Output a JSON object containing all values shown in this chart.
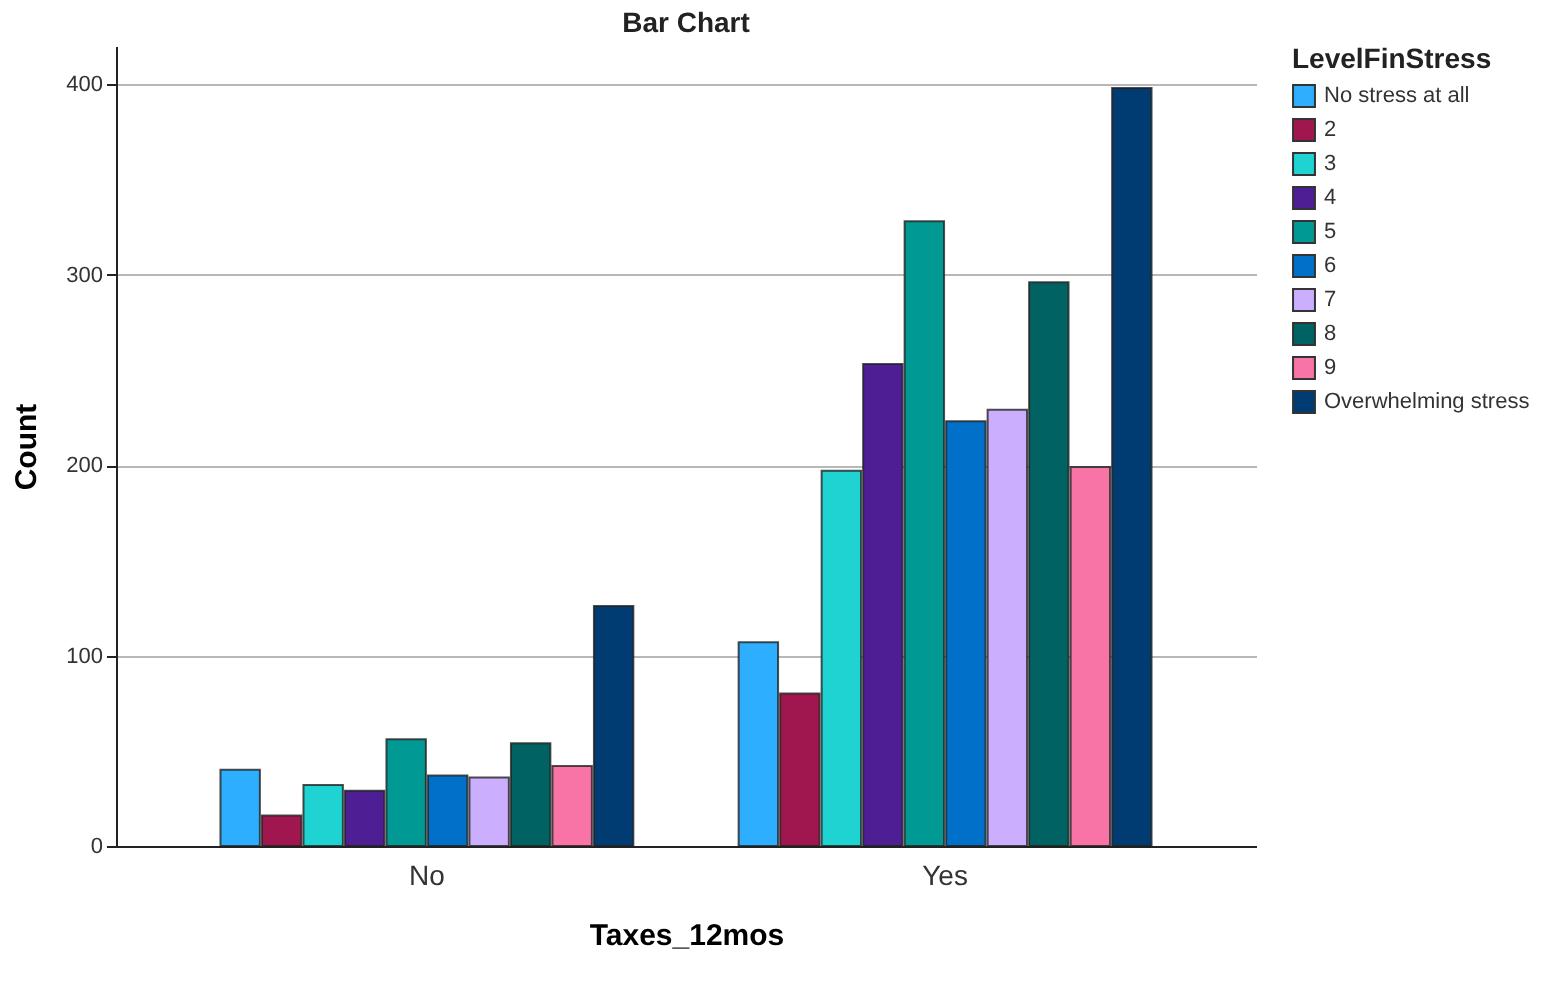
{
  "chart_data": {
    "type": "bar",
    "title": "Bar Chart",
    "xlabel": "Taxes_12mos",
    "ylabel": "Count",
    "legend_title": "LevelFinStress",
    "categories": [
      "No",
      "Yes"
    ],
    "series": [
      {
        "name": "No stress at all",
        "color": "#2eaeff",
        "values": [
          40,
          107
        ]
      },
      {
        "name": "2",
        "color": "#a0174f",
        "values": [
          16,
          80
        ]
      },
      {
        "name": "3",
        "color": "#20d3d3",
        "values": [
          32,
          197
        ]
      },
      {
        "name": "4",
        "color": "#4e1e94",
        "values": [
          29,
          253
        ]
      },
      {
        "name": "5",
        "color": "#009994",
        "values": [
          56,
          328
        ]
      },
      {
        "name": "6",
        "color": "#0070c8",
        "values": [
          37,
          223
        ]
      },
      {
        "name": "7",
        "color": "#ccaeff",
        "values": [
          36,
          229
        ]
      },
      {
        "name": "8",
        "color": "#006262",
        "values": [
          54,
          296
        ]
      },
      {
        "name": "9",
        "color": "#f874a6",
        "values": [
          42,
          199
        ]
      },
      {
        "name": "Overwhelming stress",
        "color": "#003b72",
        "values": [
          126,
          398
        ]
      }
    ],
    "ylim": [
      0,
      420
    ],
    "yticks": [
      0,
      100,
      200,
      300,
      400
    ],
    "grid": "y",
    "legend": "top right"
  }
}
